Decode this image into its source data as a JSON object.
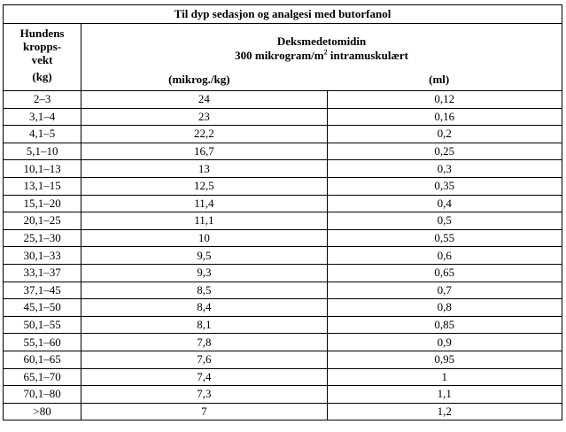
{
  "table": {
    "title": "Til dyp sedasjon og analgesi med butorfanol",
    "header": {
      "weight_lines": [
        "Hundens",
        "kropps-",
        "vekt",
        "(kg)"
      ],
      "drug_name": "Deksmedetomidin",
      "drug_dose_prefix": "300 mikrogram/m",
      "drug_dose_sup": "2",
      "drug_dose_suffix": " intramuskulært",
      "unit_dose": "(mikrog./kg)",
      "unit_volume": "(ml)"
    },
    "rows": [
      {
        "weight": "2–3",
        "dose": "24",
        "volume": "0,12"
      },
      {
        "weight": "3,1–4",
        "dose": "23",
        "volume": "0,16"
      },
      {
        "weight": "4,1–5",
        "dose": "22,2",
        "volume": "0,2"
      },
      {
        "weight": "5,1–10",
        "dose": "16,7",
        "volume": "0,25"
      },
      {
        "weight": "10,1–13",
        "dose": "13",
        "volume": "0,3"
      },
      {
        "weight": "13,1–15",
        "dose": "12,5",
        "volume": "0,35"
      },
      {
        "weight": "15,1–20",
        "dose": "11,4",
        "volume": "0,4"
      },
      {
        "weight": "20,1–25",
        "dose": "11,1",
        "volume": "0,5"
      },
      {
        "weight": "25,1–30",
        "dose": "10",
        "volume": "0,55"
      },
      {
        "weight": "30,1–33",
        "dose": "9,5",
        "volume": "0,6"
      },
      {
        "weight": "33,1–37",
        "dose": "9,3",
        "volume": "0,65"
      },
      {
        "weight": "37,1–45",
        "dose": "8,5",
        "volume": "0,7"
      },
      {
        "weight": "45,1–50",
        "dose": "8,4",
        "volume": "0,8"
      },
      {
        "weight": "50,1–55",
        "dose": "8,1",
        "volume": "0,85"
      },
      {
        "weight": "55,1–60",
        "dose": "7,8",
        "volume": "0,9"
      },
      {
        "weight": "60,1–65",
        "dose": "7,6",
        "volume": "0,95"
      },
      {
        "weight": "65,1–70",
        "dose": "7,4",
        "volume": "1"
      },
      {
        "weight": "70,1–80",
        "dose": "7,3",
        "volume": "1,1"
      },
      {
        "weight": ">80",
        "dose": "7",
        "volume": "1,2"
      }
    ]
  }
}
